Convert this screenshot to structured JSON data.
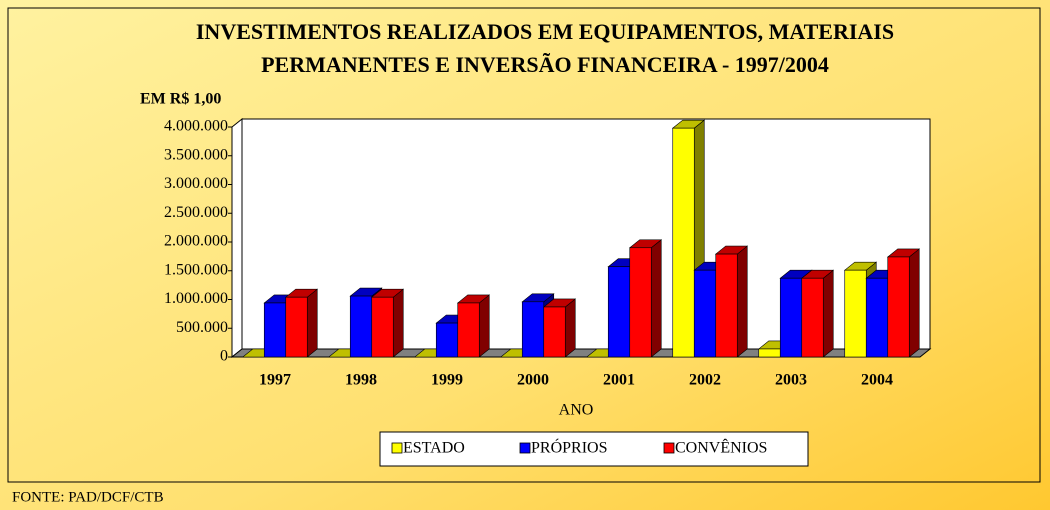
{
  "chart_data": {
    "type": "bar3d",
    "title": [
      "INVESTIMENTOS REALIZADOS EM EQUIPAMENTOS, MATERIAIS",
      "PERMANENTES E INVERSÃO FINANCEIRA - 1997/2004"
    ],
    "unit_label": "EM R$ 1,00",
    "x_label": "ANO",
    "source": "FONTE: PAD/DCF/CTB",
    "categories": [
      "1997",
      "1998",
      "1999",
      "2000",
      "2001",
      "2002",
      "2003",
      "2004"
    ],
    "series": [
      {
        "name": "ESTADO",
        "color": "#ffff00",
        "values": [
          0,
          0,
          0,
          0,
          0,
          3980000,
          140000,
          1510000
        ]
      },
      {
        "name": "PRÓPRIOS",
        "color": "#0000ff",
        "values": [
          940000,
          1060000,
          590000,
          960000,
          1570000,
          1510000,
          1370000,
          1370000
        ]
      },
      {
        "name": "CONVÊNIOS",
        "color": "#ff0000",
        "values": [
          1040000,
          1040000,
          940000,
          870000,
          1900000,
          1790000,
          1370000,
          1740000
        ]
      }
    ],
    "ylim": [
      0,
      4000000
    ],
    "yticks": [
      0,
      {
        "value": 500000,
        "label": "500.000"
      },
      {
        "value": 1000000,
        "label": "1.000.000"
      },
      {
        "value": 1500000,
        "label": "1.500.000"
      },
      {
        "value": 2000000,
        "label": "2.000.000"
      },
      {
        "value": 2500000,
        "label": "2.500.000"
      },
      {
        "value": 3000000,
        "label": "3.000.000"
      },
      {
        "value": 3500000,
        "label": "3.500.000"
      },
      {
        "value": 4000000,
        "label": "4.000.000"
      }
    ],
    "legend": "bottom"
  }
}
